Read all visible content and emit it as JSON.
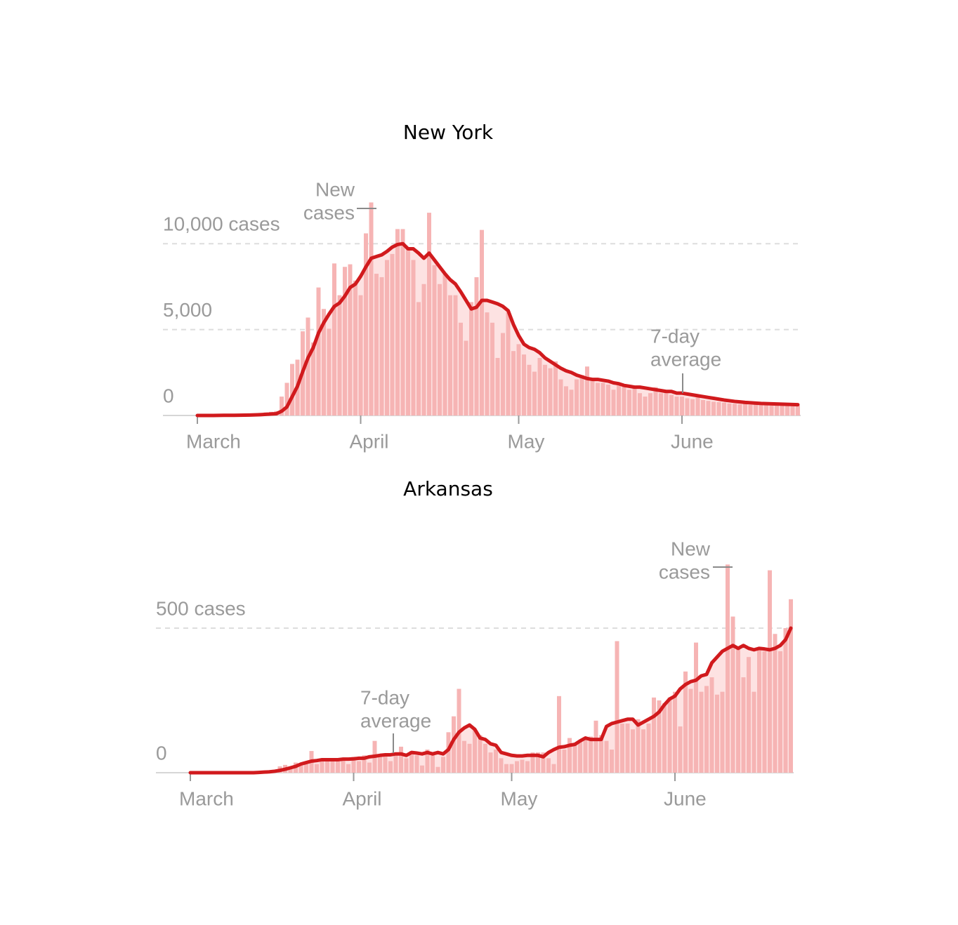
{
  "chart_data": [
    {
      "type": "bar",
      "title": "New York",
      "categories": [
        "March",
        null,
        null,
        null,
        null,
        null,
        null,
        null,
        null,
        null,
        null,
        null,
        null,
        null,
        null,
        null,
        null,
        null,
        null,
        null,
        null,
        null,
        null,
        null,
        null,
        null,
        null,
        null,
        null,
        null,
        null,
        "April",
        null,
        null,
        null,
        null,
        null,
        null,
        null,
        null,
        null,
        null,
        null,
        null,
        null,
        null,
        null,
        null,
        null,
        null,
        null,
        null,
        null,
        null,
        null,
        null,
        null,
        null,
        null,
        null,
        null,
        "May",
        null,
        null,
        null,
        null,
        null,
        null,
        null,
        null,
        null,
        null,
        null,
        null,
        null,
        null,
        null,
        null,
        null,
        null,
        null,
        null,
        null,
        null,
        null,
        null,
        null,
        null,
        null,
        null,
        null,
        null,
        "June",
        null,
        null,
        null,
        null,
        null,
        null,
        null,
        null,
        null,
        null,
        null,
        null,
        null,
        null,
        null,
        null,
        null,
        null,
        null,
        null,
        null,
        null
      ],
      "series": [
        {
          "type": "bar",
          "color": "#f6b4b4",
          "values": [
            0,
            0,
            1,
            9,
            22,
            33,
            14,
            16,
            36,
            31,
            70,
            95,
            150,
            180,
            210,
            260,
            1100,
            1900,
            3000,
            3250,
            4900,
            5700,
            4250,
            7450,
            6200,
            5050,
            8850,
            7000,
            8650,
            8800,
            7850,
            7000,
            10600,
            12400,
            8250,
            8050,
            9050,
            9400,
            10850,
            10850,
            9700,
            9050,
            6600,
            7650,
            11800,
            8750,
            7650,
            8250,
            7000,
            7000,
            5400,
            4350,
            6600,
            8050,
            10800,
            6000,
            5400,
            3350,
            4800,
            6000,
            3750,
            4150,
            3550,
            2950,
            2550,
            3350,
            2950,
            2750,
            3150,
            2100,
            1700,
            1500,
            2100,
            2350,
            2850,
            2100,
            1900,
            1900,
            1800,
            1500,
            1800,
            1700,
            1500,
            1700,
            1300,
            1100,
            1300,
            1650,
            1300,
            1300,
            1200,
            1100,
            1100,
            1000,
            950,
            1050,
            900,
            850,
            800,
            780,
            750,
            700,
            680,
            650,
            700,
            620,
            640,
            600,
            620,
            580,
            600,
            590,
            570,
            560,
            580
          ]
        },
        {
          "type": "line",
          "color": "#d11a1d",
          "values": [
            0,
            0,
            0,
            2,
            5,
            9,
            10,
            12,
            17,
            20,
            27,
            34,
            47,
            66,
            86,
            100,
            250,
            500,
            1100,
            1700,
            2550,
            3350,
            3950,
            4800,
            5400,
            5900,
            6350,
            6550,
            6950,
            7450,
            7650,
            8100,
            8650,
            9150,
            9250,
            9350,
            9550,
            9800,
            9950,
            10000,
            9700,
            9700,
            9450,
            9150,
            9450,
            9050,
            8650,
            8250,
            7900,
            7650,
            7200,
            6700,
            6200,
            6300,
            6700,
            6700,
            6600,
            6500,
            6350,
            6100,
            5300,
            4650,
            4150,
            3950,
            3850,
            3650,
            3350,
            3150,
            2950,
            2750,
            2600,
            2500,
            2350,
            2250,
            2150,
            2100,
            2100,
            2050,
            2000,
            1900,
            1850,
            1750,
            1700,
            1650,
            1650,
            1600,
            1550,
            1500,
            1450,
            1400,
            1400,
            1300,
            1300,
            1250,
            1200,
            1150,
            1100,
            1050,
            1000,
            950,
            900,
            860,
            820,
            790,
            760,
            740,
            720,
            700,
            690,
            680,
            670,
            660,
            650,
            640,
            630
          ]
        }
      ],
      "ylim": [
        0,
        12500
      ],
      "yticks": [
        0,
        {
          "value": 5000,
          "label": "5,000"
        },
        {
          "value": 10000,
          "label": "10,000 cases"
        }
      ],
      "grid": true,
      "annotations": [
        {
          "lines": [
            "New",
            "cases"
          ]
        },
        {
          "lines": [
            "7-day",
            "average"
          ]
        }
      ]
    },
    {
      "type": "bar",
      "title": "Arkansas",
      "categories": [
        "March",
        null,
        null,
        null,
        null,
        null,
        null,
        null,
        null,
        null,
        null,
        null,
        null,
        null,
        null,
        null,
        null,
        null,
        null,
        null,
        null,
        null,
        null,
        null,
        null,
        null,
        null,
        null,
        null,
        null,
        null,
        "April",
        null,
        null,
        null,
        null,
        null,
        null,
        null,
        null,
        null,
        null,
        null,
        null,
        null,
        null,
        null,
        null,
        null,
        null,
        null,
        null,
        null,
        null,
        null,
        null,
        null,
        null,
        null,
        null,
        null,
        "May",
        null,
        null,
        null,
        null,
        null,
        null,
        null,
        null,
        null,
        null,
        null,
        null,
        null,
        null,
        null,
        null,
        null,
        null,
        null,
        null,
        null,
        null,
        null,
        null,
        null,
        null,
        null,
        null,
        null,
        null,
        "June",
        null,
        null,
        null,
        null,
        null,
        null,
        null,
        null,
        null,
        null,
        null,
        null,
        null,
        null,
        null,
        null,
        null,
        null,
        null,
        null,
        null,
        null
      ],
      "series": [
        {
          "type": "bar",
          "color": "#f6b4b4",
          "values": [
            0,
            0,
            0,
            0,
            0,
            0,
            0,
            0,
            0,
            0,
            0,
            0,
            0,
            2,
            4,
            5,
            10,
            22,
            27,
            15,
            35,
            25,
            30,
            75,
            30,
            45,
            40,
            50,
            40,
            50,
            30,
            55,
            40,
            60,
            35,
            110,
            55,
            60,
            40,
            65,
            90,
            50,
            75,
            60,
            25,
            80,
            60,
            20,
            55,
            140,
            195,
            290,
            110,
            100,
            150,
            130,
            100,
            70,
            80,
            50,
            30,
            30,
            40,
            45,
            40,
            70,
            70,
            70,
            50,
            30,
            265,
            80,
            120,
            100,
            110,
            120,
            125,
            180,
            130,
            110,
            80,
            455,
            170,
            170,
            150,
            185,
            150,
            170,
            260,
            250,
            240,
            260,
            280,
            160,
            350,
            290,
            450,
            280,
            300,
            330,
            270,
            280,
            720,
            540,
            430,
            330,
            400,
            280,
            430,
            420,
            700,
            480,
            420,
            500,
            600
          ]
        },
        {
          "type": "line",
          "color": "#d11a1d",
          "values": [
            0,
            0,
            0,
            0,
            0,
            0,
            0,
            0,
            0,
            0,
            0,
            0,
            0,
            1,
            2,
            3,
            5,
            8,
            12,
            17,
            22,
            30,
            35,
            40,
            42,
            45,
            45,
            45,
            45,
            47,
            47,
            48,
            50,
            50,
            55,
            57,
            60,
            62,
            62,
            65,
            65,
            60,
            70,
            68,
            65,
            70,
            65,
            70,
            65,
            80,
            115,
            140,
            155,
            165,
            150,
            120,
            115,
            100,
            95,
            70,
            65,
            60,
            58,
            58,
            60,
            60,
            60,
            55,
            70,
            80,
            88,
            90,
            95,
            98,
            110,
            120,
            115,
            115,
            115,
            160,
            170,
            175,
            180,
            185,
            185,
            165,
            175,
            185,
            195,
            210,
            235,
            255,
            265,
            290,
            305,
            315,
            320,
            335,
            340,
            380,
            400,
            420,
            430,
            440,
            430,
            440,
            430,
            425,
            430,
            428,
            425,
            430,
            440,
            460,
            500
          ]
        }
      ],
      "ylim": [
        0,
        750
      ],
      "yticks": [
        0,
        {
          "value": 500,
          "label": "500 cases"
        }
      ],
      "grid": true,
      "annotations": [
        {
          "lines": [
            "7-day",
            "average"
          ]
        },
        {
          "lines": [
            "New",
            "cases"
          ]
        }
      ]
    }
  ]
}
